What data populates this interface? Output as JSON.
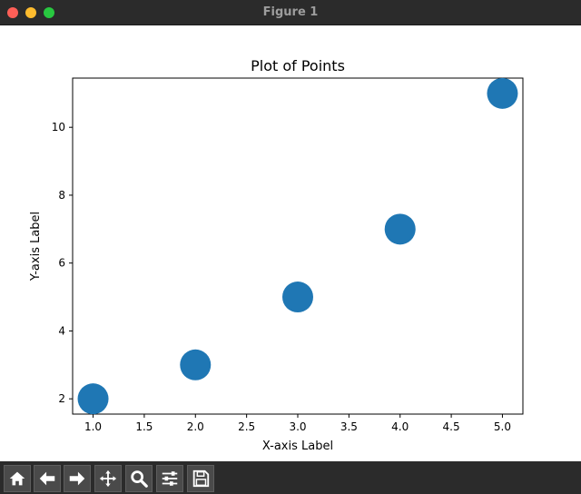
{
  "window": {
    "title": "Figure 1"
  },
  "toolbar": {
    "buttons": [
      {
        "name": "home-button",
        "icon": "home-icon"
      },
      {
        "name": "back-button",
        "icon": "arrow-left-icon"
      },
      {
        "name": "forward-button",
        "icon": "arrow-right-icon"
      },
      {
        "name": "pan-button",
        "icon": "move-icon"
      },
      {
        "name": "zoom-button",
        "icon": "magnifier-icon"
      },
      {
        "name": "configure-subplots-button",
        "icon": "sliders-icon"
      },
      {
        "name": "save-button",
        "icon": "floppy-disk-icon"
      }
    ]
  },
  "chart_data": {
    "type": "scatter",
    "title": "Plot of Points",
    "xlabel": "X-axis Label",
    "ylabel": "Y-axis Label",
    "x": [
      1,
      2,
      3,
      4,
      5
    ],
    "y": [
      2,
      3,
      5,
      7,
      11
    ],
    "xlim": [
      0.8,
      5.2
    ],
    "ylim": [
      1.55,
      11.45
    ],
    "xticks": [
      "1.0",
      "1.5",
      "2.0",
      "2.5",
      "3.0",
      "3.5",
      "4.0",
      "4.5",
      "5.0"
    ],
    "yticks": [
      "2",
      "4",
      "6",
      "8",
      "10"
    ],
    "marker_color": "#1f77b4",
    "grid": false,
    "legend": false
  }
}
